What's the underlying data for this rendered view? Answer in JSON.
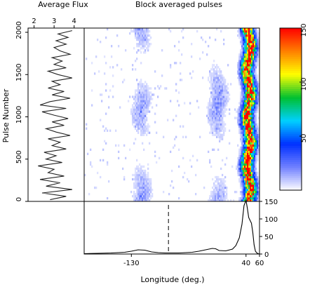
{
  "chart_data": [
    {
      "id": "flux_panel",
      "type": "line",
      "title": "Average Flux",
      "xticks": [
        "2",
        "3",
        "4"
      ],
      "xlim": [
        1.7,
        4.5
      ],
      "ylim": [
        0,
        2050
      ],
      "y": [
        20,
        60,
        100,
        140,
        180,
        220,
        260,
        300,
        340,
        380,
        420,
        460,
        500,
        540,
        580,
        620,
        660,
        700,
        740,
        780,
        820,
        860,
        900,
        940,
        980,
        1020,
        1060,
        1100,
        1140,
        1180,
        1220,
        1260,
        1300,
        1340,
        1380,
        1420,
        1460,
        1500,
        1540,
        1580,
        1620,
        1660,
        1700,
        1740,
        1780,
        1820,
        1860,
        1900,
        1940,
        1980,
        2020
      ],
      "x": [
        2.8,
        3.6,
        2.4,
        3.9,
        2.6,
        3.3,
        2.3,
        3.5,
        2.7,
        3.0,
        2.2,
        3.4,
        2.6,
        3.1,
        2.5,
        3.6,
        2.9,
        3.3,
        2.7,
        3.8,
        3.1,
        2.6,
        3.5,
        2.9,
        3.7,
        3.0,
        2.4,
        3.6,
        2.3,
        2.8,
        3.8,
        2.9,
        3.5,
        2.7,
        3.3,
        2.9,
        3.9,
        3.2,
        2.7,
        3.6,
        3.0,
        3.4,
        2.9,
        3.8,
        3.3,
        3.0,
        3.6,
        3.1,
        3.7,
        3.2,
        3.9
      ]
    },
    {
      "id": "heatmap_panel",
      "type": "heatmap",
      "title": "Block averaged pulses",
      "ylabel": "Pulse Number",
      "yticks": [
        "0",
        "500",
        "1000",
        "1500",
        "2000"
      ],
      "ylim": [
        0,
        2050
      ],
      "xlim": [
        -200,
        60
      ],
      "components": [
        {
          "center": -115,
          "width": 18,
          "intensity": 16
        },
        {
          "center": -2,
          "width": 18,
          "intensity": 18
        },
        {
          "center": 44,
          "width": 12,
          "intensity": 150
        }
      ],
      "colorbar": {
        "ticks": [
          "50",
          "100",
          "150"
        ],
        "range": [
          0,
          150
        ],
        "colors": [
          "#ffffff",
          "#7080ff",
          "#0030ff",
          "#00d0ff",
          "#00c030",
          "#ffff00",
          "#ff8000",
          "#ff0000"
        ]
      }
    },
    {
      "id": "profile_panel",
      "type": "line",
      "xlabel": "Longitude (deg.)",
      "xticks": [
        "-130",
        "40",
        "60"
      ],
      "yticks": [
        "0",
        "50",
        "100",
        "150"
      ],
      "ylim": [
        0,
        150
      ],
      "xlim": [
        -200,
        60
      ],
      "cursor_x": -75,
      "x": [
        -200,
        -180,
        -160,
        -140,
        -130,
        -120,
        -110,
        -100,
        -90,
        -80,
        -70,
        -60,
        -50,
        -40,
        -30,
        -20,
        -10,
        -5,
        0,
        10,
        20,
        25,
        30,
        34,
        37,
        40,
        42,
        44,
        46,
        48,
        50,
        52,
        54,
        56,
        58,
        60
      ],
      "y": [
        1,
        2,
        3,
        5,
        8,
        12,
        11,
        6,
        4,
        3,
        3,
        3,
        4,
        5,
        8,
        12,
        16,
        15,
        10,
        9,
        14,
        24,
        46,
        85,
        138,
        153,
        130,
        104,
        96,
        88,
        62,
        26,
        8,
        3,
        1,
        0
      ]
    }
  ]
}
